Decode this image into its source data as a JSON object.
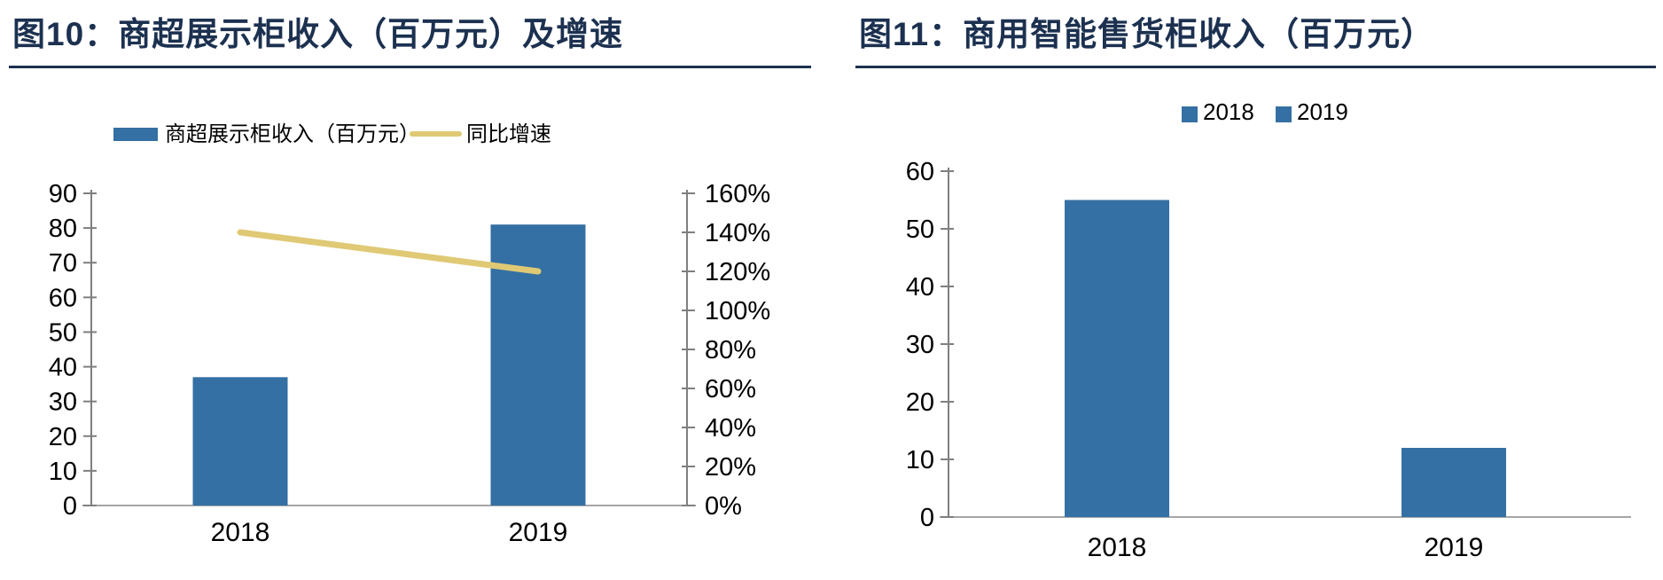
{
  "page": {
    "background": "#ffffff",
    "title_color": "#1C3150",
    "axis_line_color": "#7F7F7F",
    "baseline_color": "#A6A6A6",
    "tick_label_color": "#000000"
  },
  "figures": [
    {
      "id": "fig10",
      "title": "图10：商超展示柜收入（百万元）及增速",
      "chart_data": {
        "type": "bar+line",
        "categories": [
          "2018",
          "2019"
        ],
        "series": [
          {
            "name": "商超展示柜收入（百万元）",
            "kind": "bar",
            "axis": "left",
            "values": [
              37,
              81
            ],
            "color": "#3470A3"
          },
          {
            "name": "同比增速",
            "kind": "line",
            "axis": "right",
            "values": [
              140,
              120
            ],
            "unit": "%",
            "color": "#E0C975"
          }
        ],
        "left_axis": {
          "min": 0,
          "max": 90,
          "step": 10,
          "ticks": [
            "90",
            "80",
            "70",
            "60",
            "50",
            "40",
            "30",
            "20",
            "10",
            "0"
          ]
        },
        "right_axis": {
          "min": 0,
          "max": 160,
          "step": 20,
          "ticks": [
            "160%",
            "140%",
            "120%",
            "100%",
            "80%",
            "60%",
            "40%",
            "20%",
            "0%"
          ]
        },
        "legend_position": "top",
        "grid": false
      }
    },
    {
      "id": "fig11",
      "title": "图11：商用智能售货柜收入（百万元）",
      "chart_data": {
        "type": "bar",
        "categories": [
          "2018",
          "2019"
        ],
        "values": [
          55,
          12
        ],
        "bar_color": "#3470A3",
        "legend": [
          {
            "label": "2018",
            "color": "#3470A3"
          },
          {
            "label": "2019",
            "color": "#3470A3"
          }
        ],
        "left_axis": {
          "min": 0,
          "max": 60,
          "step": 10,
          "ticks": [
            "60",
            "50",
            "40",
            "30",
            "20",
            "10",
            "0"
          ]
        },
        "legend_position": "top",
        "grid": false
      }
    }
  ]
}
